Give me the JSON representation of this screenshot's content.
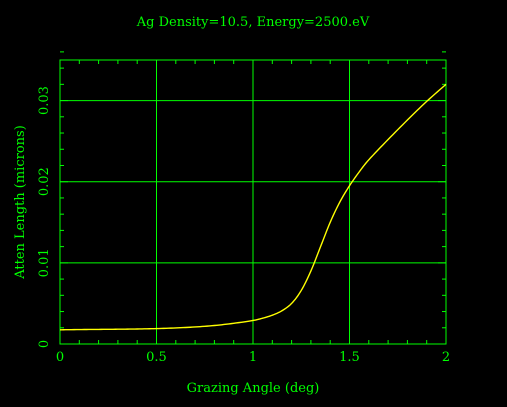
{
  "chart_data": {
    "type": "line",
    "title": "Ag Density=10.5, Energy=2500.eV",
    "xlabel": "Grazing Angle (deg)",
    "ylabel": "Atten Length (microns)",
    "xlim": [
      0,
      2
    ],
    "ylim": [
      0,
      0.035
    ],
    "x_ticks": [
      {
        "value": 0,
        "label": "0"
      },
      {
        "value": 0.5,
        "label": "0.5"
      },
      {
        "value": 1,
        "label": "1"
      },
      {
        "value": 1.5,
        "label": "1.5"
      },
      {
        "value": 2,
        "label": "2"
      }
    ],
    "y_ticks": [
      {
        "value": 0,
        "label": "0"
      },
      {
        "value": 0.01,
        "label": "0.01"
      },
      {
        "value": 0.02,
        "label": "0.02"
      },
      {
        "value": 0.03,
        "label": "0.03"
      }
    ],
    "x_minor_step": 0.1,
    "y_minor_step": 0.002,
    "grid": true,
    "colors": {
      "background": "#000000",
      "axes": "#00ff00",
      "text": "#00ff00",
      "line": "#ffff00"
    },
    "series": [
      {
        "x": [
          0,
          0.1,
          0.2,
          0.3,
          0.4,
          0.5,
          0.6,
          0.7,
          0.8,
          0.9,
          1.0,
          1.05,
          1.1,
          1.15,
          1.2,
          1.25,
          1.3,
          1.35,
          1.4,
          1.45,
          1.5,
          1.55,
          1.6,
          1.7,
          1.8,
          1.9,
          2.0
        ],
        "values": [
          0.00175,
          0.00178,
          0.0018,
          0.00182,
          0.00185,
          0.0019,
          0.00198,
          0.0021,
          0.00228,
          0.00255,
          0.0029,
          0.00318,
          0.00355,
          0.0041,
          0.005,
          0.0066,
          0.009,
          0.012,
          0.015,
          0.0175,
          0.0195,
          0.0212,
          0.0227,
          0.0252,
          0.0276,
          0.0299,
          0.032
        ]
      }
    ]
  }
}
